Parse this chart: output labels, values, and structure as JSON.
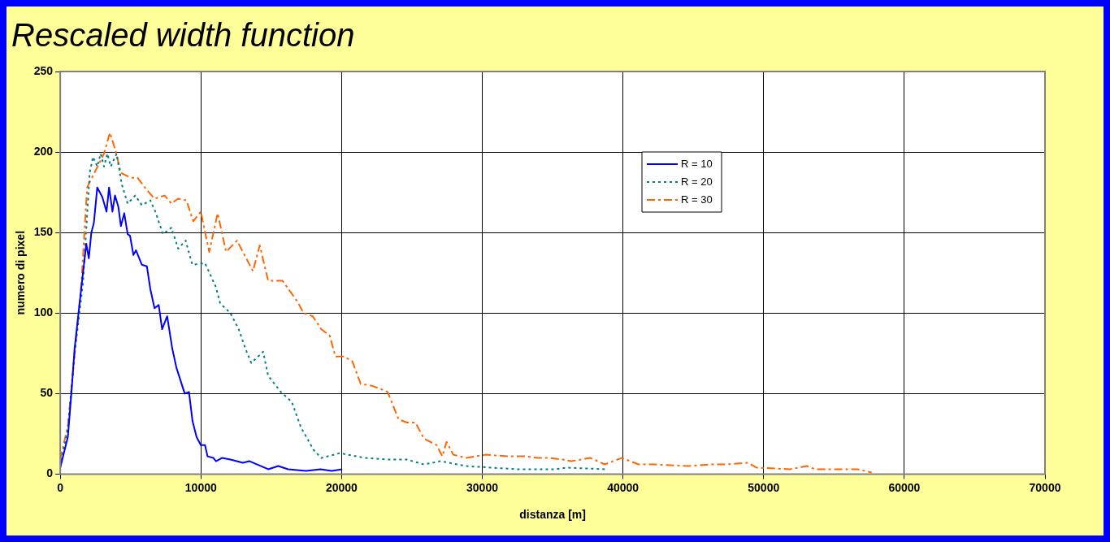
{
  "chart_data": {
    "type": "line",
    "title": "Rescaled width function",
    "xlabel": "distanza [m]",
    "ylabel": "numero di pixel",
    "xlim": [
      0,
      70000
    ],
    "xticks": [
      0,
      10000,
      20000,
      30000,
      40000,
      50000,
      60000,
      70000
    ],
    "ylim": [
      0,
      250
    ],
    "yticks": [
      0,
      50,
      100,
      150,
      200,
      250
    ],
    "grid": true,
    "legend": "top right",
    "marker": "none",
    "series": [
      {
        "name": "R = 10",
        "color": "#0000ff",
        "line_style": "solid",
        "x": [
          0,
          540,
          780,
          1020,
          1500,
          1850,
          2030,
          2210,
          2390,
          2630,
          2990,
          3290,
          3470,
          3710,
          3890,
          4130,
          4310,
          4550,
          4790,
          4960,
          5200,
          5380,
          5800,
          6160,
          6400,
          6700,
          7000,
          7240,
          7600,
          7960,
          8260,
          8850,
          9150,
          9400,
          9690,
          9990,
          10290,
          10470,
          10890,
          11070,
          11490,
          12090,
          12980,
          13460,
          14780,
          15500,
          16200,
          17470,
          18500,
          19300,
          20040
        ],
        "values": [
          4,
          23,
          49,
          78,
          116,
          143,
          134,
          150,
          156,
          178,
          172,
          163,
          178,
          163,
          173,
          166,
          154,
          162,
          149,
          148,
          136,
          139,
          130,
          129,
          115,
          103,
          105,
          90,
          98,
          78,
          66,
          50,
          51,
          33,
          23,
          18,
          18,
          11,
          10,
          8,
          10,
          9,
          7,
          8,
          3,
          5,
          3,
          2,
          3,
          2,
          3
        ]
      },
      {
        "name": "R = 20",
        "color": "#008080",
        "line_style": "dotted",
        "x": [
          0,
          540,
          1020,
          1620,
          2090,
          2330,
          2630,
          2870,
          3110,
          3350,
          3590,
          4010,
          4370,
          4790,
          5330,
          5800,
          6400,
          6760,
          7300,
          7900,
          8380,
          8910,
          9390,
          10290,
          11070,
          11370,
          12090,
          12680,
          13160,
          13580,
          14420,
          14780,
          15680,
          16450,
          17110,
          18010,
          18550,
          19860,
          21660,
          23450,
          24650,
          25850,
          27040,
          28840,
          30630,
          32430,
          35120,
          36020,
          38710
        ],
        "values": [
          5,
          28,
          75,
          119,
          187,
          197,
          191,
          199,
          191,
          199,
          191,
          199,
          180,
          168,
          173,
          167,
          170,
          163,
          149,
          153,
          140,
          145,
          130,
          131,
          116,
          106,
          100,
          90,
          78,
          69,
          76,
          61,
          51,
          45,
          29,
          15,
          10,
          13,
          10,
          9,
          9,
          6,
          8,
          5,
          4,
          3,
          3,
          4,
          3
        ]
      },
      {
        "name": "R = 30",
        "color": "#ff6600",
        "line_style": "dashed",
        "x": [
          0,
          540,
          1500,
          1910,
          3110,
          3530,
          3890,
          4310,
          5030,
          5500,
          6100,
          6700,
          7420,
          7900,
          8380,
          8970,
          9450,
          9990,
          10590,
          11190,
          11790,
          12560,
          13700,
          14180,
          14780,
          15800,
          16870,
          17290,
          17950,
          18550,
          19150,
          19560,
          20160,
          20760,
          21360,
          22080,
          22740,
          23270,
          24050,
          24650,
          25250,
          25850,
          26750,
          27160,
          27460,
          27940,
          28840,
          30220,
          31830,
          33030,
          33920,
          34820,
          35720,
          36320,
          37690,
          38710,
          39910,
          41110,
          42180,
          44690,
          46190,
          47390,
          48880,
          49480,
          51870,
          53070,
          53670,
          55170,
          56660,
          57680
        ],
        "values": [
          9,
          30,
          118,
          178,
          199,
          212,
          202,
          187,
          184,
          184,
          177,
          171,
          173,
          168,
          171,
          170,
          157,
          163,
          138,
          162,
          138,
          145,
          126,
          142,
          120,
          120,
          107,
          100,
          98,
          90,
          86,
          73,
          73,
          70,
          56,
          55,
          53,
          51,
          34,
          32,
          32,
          22,
          18,
          11,
          20,
          12,
          10,
          12,
          11,
          11,
          10,
          10,
          9,
          8,
          10,
          6,
          10,
          6,
          6,
          5,
          6,
          6,
          7,
          4,
          3,
          5,
          3,
          3,
          3,
          1
        ]
      }
    ]
  }
}
